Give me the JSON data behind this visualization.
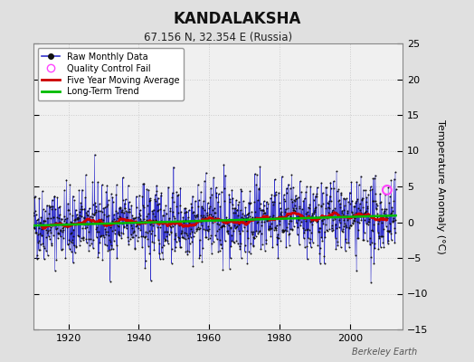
{
  "title": "KANDALAKSHA",
  "subtitle": "67.156 N, 32.354 E (Russia)",
  "ylabel": "Temperature Anomaly (°C)",
  "credit": "Berkeley Earth",
  "xlim": [
    1910,
    2015
  ],
  "ylim": [
    -15,
    25
  ],
  "yticks": [
    -15,
    -10,
    -5,
    0,
    5,
    10,
    15,
    20,
    25
  ],
  "xticks": [
    1920,
    1940,
    1960,
    1980,
    2000
  ],
  "outer_bg_color": "#e0e0e0",
  "plot_bg_color": "#f0f0f0",
  "raw_line_color": "#3333cc",
  "raw_dot_color": "#111111",
  "moving_avg_color": "#cc0000",
  "trend_color": "#00bb00",
  "qc_fail_color": "#ff44ff",
  "grid_color": "#cccccc",
  "seed": 42,
  "start_year": 1910,
  "end_year": 2013,
  "n_months": 1236,
  "qc_year": 2010.5,
  "qc_val": 4.5
}
